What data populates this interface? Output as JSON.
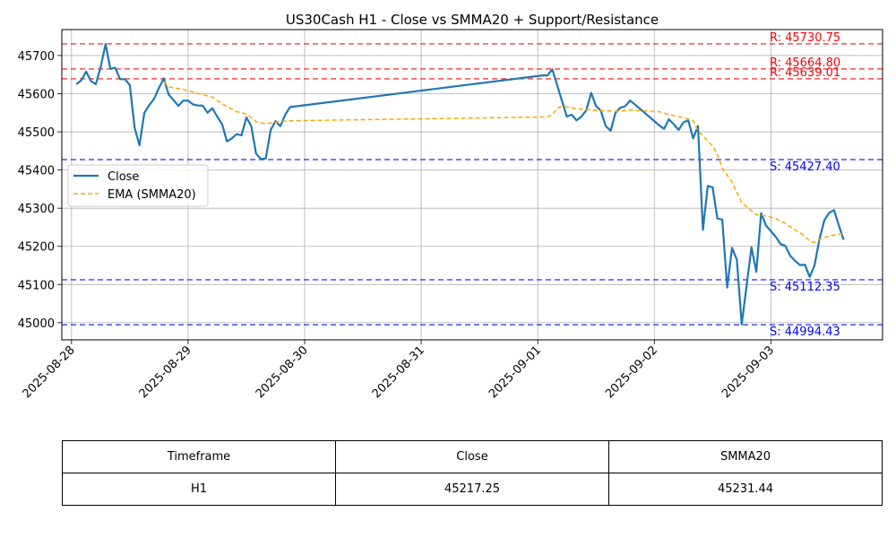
{
  "chart_data": {
    "type": "line",
    "title": "US30Cash H1 - Close vs SMMA20 + Support/Resistance",
    "xlabel": "",
    "ylabel": "",
    "xlim": [
      "2025-08-27T22:00",
      "2025-09-03T23:00"
    ],
    "ylim": [
      44955,
      45768
    ],
    "x_ticks": [
      "2025-08-28",
      "2025-08-29",
      "2025-08-30",
      "2025-08-31",
      "2025-09-01",
      "2025-09-02",
      "2025-09-03"
    ],
    "y_ticks": [
      45000,
      45100,
      45200,
      45300,
      45400,
      45500,
      45600,
      45700
    ],
    "grid": true,
    "legend_position": "center-left",
    "series": [
      {
        "name": "Close",
        "color": "#1f77b4",
        "style": "solid",
        "points": [
          [
            "2025-08-28T01:00",
            45625
          ],
          [
            "2025-08-28T02:00",
            45635
          ],
          [
            "2025-08-28T03:00",
            45658
          ],
          [
            "2025-08-28T04:00",
            45633
          ],
          [
            "2025-08-28T05:00",
            45625
          ],
          [
            "2025-08-28T06:00",
            45670
          ],
          [
            "2025-08-28T07:00",
            45730
          ],
          [
            "2025-08-28T08:00",
            45665
          ],
          [
            "2025-08-28T09:00",
            45668
          ],
          [
            "2025-08-28T10:00",
            45638
          ],
          [
            "2025-08-28T11:00",
            45638
          ],
          [
            "2025-08-28T12:00",
            45622
          ],
          [
            "2025-08-28T13:00",
            45510
          ],
          [
            "2025-08-28T14:00",
            45465
          ],
          [
            "2025-08-28T15:00",
            45550
          ],
          [
            "2025-08-28T16:00",
            45570
          ],
          [
            "2025-08-28T17:00",
            45587
          ],
          [
            "2025-08-28T18:00",
            45615
          ],
          [
            "2025-08-28T19:00",
            45640
          ],
          [
            "2025-08-28T20:00",
            45598
          ],
          [
            "2025-08-28T21:00",
            45583
          ],
          [
            "2025-08-28T22:00",
            45568
          ],
          [
            "2025-08-28T23:00",
            45582
          ],
          [
            "2025-08-29T00:00",
            45582
          ],
          [
            "2025-08-29T01:00",
            45572
          ],
          [
            "2025-08-29T02:00",
            45569
          ],
          [
            "2025-08-29T03:00",
            45569
          ],
          [
            "2025-08-29T04:00",
            45550
          ],
          [
            "2025-08-29T05:00",
            45562
          ],
          [
            "2025-08-29T06:00",
            45540
          ],
          [
            "2025-08-29T07:00",
            45520
          ],
          [
            "2025-08-29T08:00",
            45475
          ],
          [
            "2025-08-29T09:00",
            45483
          ],
          [
            "2025-08-29T10:00",
            45494
          ],
          [
            "2025-08-29T11:00",
            45491
          ],
          [
            "2025-08-29T12:00",
            45538
          ],
          [
            "2025-08-29T13:00",
            45515
          ],
          [
            "2025-08-29T14:00",
            45443
          ],
          [
            "2025-08-29T15:00",
            45429
          ],
          [
            "2025-08-29T16:00",
            45430
          ],
          [
            "2025-08-29T17:00",
            45505
          ],
          [
            "2025-08-29T18:00",
            45528
          ],
          [
            "2025-08-29T19:00",
            45515
          ],
          [
            "2025-08-29T20:00",
            45545
          ],
          [
            "2025-08-29T21:00",
            45565
          ],
          [
            "2025-09-01T01:00",
            45648
          ],
          [
            "2025-09-01T02:00",
            45648
          ],
          [
            "2025-09-01T03:00",
            45664
          ],
          [
            "2025-09-01T04:00",
            45622
          ],
          [
            "2025-09-01T05:00",
            45580
          ],
          [
            "2025-09-01T06:00",
            45540
          ],
          [
            "2025-09-01T07:00",
            45545
          ],
          [
            "2025-09-01T08:00",
            45530
          ],
          [
            "2025-09-01T09:00",
            45540
          ],
          [
            "2025-09-01T10:00",
            45557
          ],
          [
            "2025-09-01T11:00",
            45602
          ],
          [
            "2025-09-01T12:00",
            45568
          ],
          [
            "2025-09-01T13:00",
            45555
          ],
          [
            "2025-09-01T14:00",
            45515
          ],
          [
            "2025-09-01T15:00",
            45503
          ],
          [
            "2025-09-01T16:00",
            45550
          ],
          [
            "2025-09-01T17:00",
            45563
          ],
          [
            "2025-09-01T18:00",
            45567
          ],
          [
            "2025-09-01T19:00",
            45582
          ],
          [
            "2025-09-01T20:00",
            45572
          ],
          [
            "2025-09-02T01:00",
            45517
          ],
          [
            "2025-09-02T02:00",
            45508
          ],
          [
            "2025-09-02T03:00",
            45533
          ],
          [
            "2025-09-02T04:00",
            45520
          ],
          [
            "2025-09-02T05:00",
            45505
          ],
          [
            "2025-09-02T06:00",
            45525
          ],
          [
            "2025-09-02T07:00",
            45530
          ],
          [
            "2025-09-02T08:00",
            45483
          ],
          [
            "2025-09-02T09:00",
            45515
          ],
          [
            "2025-09-02T10:00",
            45243
          ],
          [
            "2025-09-02T11:00",
            45358
          ],
          [
            "2025-09-02T12:00",
            45355
          ],
          [
            "2025-09-02T13:00",
            45273
          ],
          [
            "2025-09-02T14:00",
            45270
          ],
          [
            "2025-09-02T15:00",
            45092
          ],
          [
            "2025-09-02T16:00",
            45196
          ],
          [
            "2025-09-02T17:00",
            45165
          ],
          [
            "2025-09-02T18:00",
            44996
          ],
          [
            "2025-09-02T19:00",
            45095
          ],
          [
            "2025-09-02T20:00",
            45198
          ],
          [
            "2025-09-02T21:00",
            45133
          ],
          [
            "2025-09-02T22:00",
            45287
          ],
          [
            "2025-09-02T23:00",
            45255
          ],
          [
            "2025-09-03T00:00",
            45240
          ],
          [
            "2025-09-03T01:00",
            45225
          ],
          [
            "2025-09-03T02:00",
            45206
          ],
          [
            "2025-09-03T03:00",
            45201
          ],
          [
            "2025-09-03T04:00",
            45175
          ],
          [
            "2025-09-03T05:00",
            45162
          ],
          [
            "2025-09-03T06:00",
            45151
          ],
          [
            "2025-09-03T07:00",
            45152
          ],
          [
            "2025-09-03T08:00",
            45120
          ],
          [
            "2025-09-03T09:00",
            45150
          ],
          [
            "2025-09-03T10:00",
            45218
          ],
          [
            "2025-09-03T11:00",
            45268
          ],
          [
            "2025-09-03T12:00",
            45288
          ],
          [
            "2025-09-03T13:00",
            45295
          ],
          [
            "2025-09-03T14:00",
            45255
          ],
          [
            "2025-09-03T15:00",
            45217.25
          ]
        ]
      },
      {
        "name": "EMA (SMMA20)",
        "color": "#ffa500",
        "style": "dashed",
        "points": [
          [
            "2025-08-28T19:00",
            45632
          ],
          [
            "2025-08-28T20:00",
            45618
          ],
          [
            "2025-08-28T23:00",
            45611
          ],
          [
            "2025-08-29T02:00",
            45601
          ],
          [
            "2025-08-29T05:00",
            45591
          ],
          [
            "2025-08-29T06:00",
            45582
          ],
          [
            "2025-08-29T08:00",
            45566
          ],
          [
            "2025-08-29T10:00",
            45553
          ],
          [
            "2025-08-29T12:00",
            45547
          ],
          [
            "2025-08-29T14:00",
            45527
          ],
          [
            "2025-08-29T16:00",
            45521
          ],
          [
            "2025-08-29T19:00",
            45527
          ],
          [
            "2025-08-29T21:00",
            45529
          ],
          [
            "2025-09-01T01:00",
            45539
          ],
          [
            "2025-09-01T02:00",
            45539
          ],
          [
            "2025-09-01T03:00",
            45545
          ],
          [
            "2025-09-01T04:00",
            45562
          ],
          [
            "2025-09-01T05:00",
            45567
          ],
          [
            "2025-09-01T08:00",
            45561
          ],
          [
            "2025-09-01T11:00",
            45557
          ],
          [
            "2025-09-01T14:00",
            45555
          ],
          [
            "2025-09-01T16:00",
            45554
          ],
          [
            "2025-09-01T19:00",
            45557
          ],
          [
            "2025-09-02T01:00",
            45553
          ],
          [
            "2025-09-02T03:00",
            45545
          ],
          [
            "2025-09-02T06:00",
            45537
          ],
          [
            "2025-09-02T08:00",
            45530
          ],
          [
            "2025-09-02T09:00",
            45503
          ],
          [
            "2025-09-02T10:00",
            45489
          ],
          [
            "2025-09-02T12:00",
            45463
          ],
          [
            "2025-09-02T13:00",
            45440
          ],
          [
            "2025-09-02T14:00",
            45405
          ],
          [
            "2025-09-02T16:00",
            45368
          ],
          [
            "2025-09-02T18:00",
            45315
          ],
          [
            "2025-09-02T20:00",
            45293
          ],
          [
            "2025-09-02T21:00",
            45283
          ],
          [
            "2025-09-02T23:00",
            45280
          ],
          [
            "2025-09-03T01:00",
            45273
          ],
          [
            "2025-09-03T03:00",
            45260
          ],
          [
            "2025-09-03T05:00",
            45243
          ],
          [
            "2025-09-03T07:00",
            45227
          ],
          [
            "2025-09-03T08:00",
            45214
          ],
          [
            "2025-09-03T09:00",
            45210
          ],
          [
            "2025-09-03T10:00",
            45218
          ],
          [
            "2025-09-03T12:00",
            45227
          ],
          [
            "2025-09-03T15:00",
            45234
          ]
        ]
      }
    ],
    "hlines": [
      {
        "kind": "resistance",
        "value": 45730.75,
        "label": "R: 45730.75",
        "color": "#ff0000"
      },
      {
        "kind": "resistance",
        "value": 45664.8,
        "label": "R: 45664.80",
        "color": "#ff0000"
      },
      {
        "kind": "resistance",
        "value": 45639.01,
        "label": "R: 45639.01",
        "color": "#ff0000"
      },
      {
        "kind": "support",
        "value": 45427.4,
        "label": "S: 45427.40",
        "color": "#0000ff"
      },
      {
        "kind": "support",
        "value": 45112.35,
        "label": "S: 45112.35",
        "color": "#0000ff"
      },
      {
        "kind": "support",
        "value": 44994.43,
        "label": "S: 44994.43",
        "color": "#0000ff"
      }
    ]
  },
  "table": {
    "headers": [
      "Timeframe",
      "Close",
      "SMMA20"
    ],
    "row": [
      "H1",
      "45217.25",
      "45231.44"
    ]
  }
}
